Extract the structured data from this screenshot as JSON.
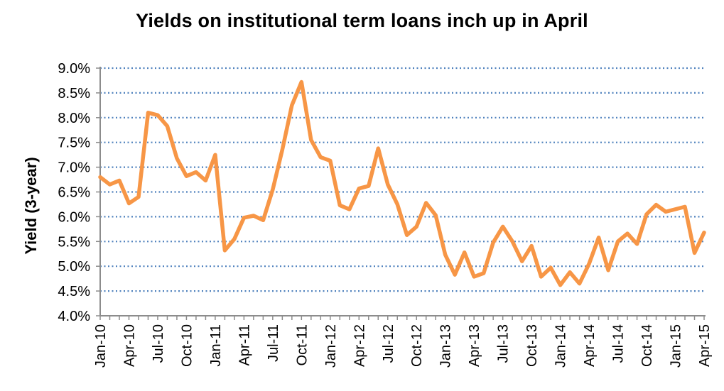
{
  "chart_data": {
    "type": "line",
    "title": "Yields on institutional term loans inch up in April",
    "xlabel": "",
    "ylabel": "Yield (3-year)",
    "ylim": [
      4.0,
      9.0
    ],
    "y_ticks": [
      4.0,
      4.5,
      5.0,
      5.5,
      6.0,
      6.5,
      7.0,
      7.5,
      8.0,
      8.5,
      9.0
    ],
    "y_tick_labels": [
      "4.0%",
      "4.5%",
      "5.0%",
      "5.5%",
      "6.0%",
      "6.5%",
      "7.0%",
      "7.5%",
      "8.0%",
      "8.5%",
      "9.0%"
    ],
    "x_tick_labels": [
      "Jan-10",
      "Apr-10",
      "Jul-10",
      "Oct-10",
      "Jan-11",
      "Apr-11",
      "Jul-11",
      "Oct-11",
      "Jan-12",
      "Apr-12",
      "Jul-12",
      "Oct-12",
      "Jan-13",
      "Apr-13",
      "Jul-13",
      "Oct-13",
      "Jan-14",
      "Apr-14",
      "Jul-14",
      "Oct-14",
      "Jan-15",
      "Apr-15"
    ],
    "grid": "horizontal dotted",
    "line_color": "#F79646",
    "grid_color": "#4F81BD",
    "series": [
      {
        "x": [
          "Jan-10",
          "Feb-10",
          "Mar-10",
          "Apr-10",
          "May-10",
          "Jun-10",
          "Jul-10",
          "Aug-10",
          "Sep-10",
          "Oct-10",
          "Nov-10",
          "Dec-10",
          "Jan-11",
          "Feb-11",
          "Mar-11",
          "Apr-11",
          "May-11",
          "Jun-11",
          "Jul-11",
          "Aug-11",
          "Sep-11",
          "Oct-11",
          "Nov-11",
          "Dec-11",
          "Jan-12",
          "Feb-12",
          "Mar-12",
          "Apr-12",
          "May-12",
          "Jun-12",
          "Jul-12",
          "Aug-12",
          "Sep-12",
          "Oct-12",
          "Nov-12",
          "Dec-12",
          "Jan-13",
          "Feb-13",
          "Mar-13",
          "Apr-13",
          "May-13",
          "Jun-13",
          "Jul-13",
          "Aug-13",
          "Sep-13",
          "Oct-13",
          "Nov-13",
          "Dec-13",
          "Jan-14",
          "Feb-14",
          "Mar-14",
          "Apr-14",
          "May-14",
          "Jun-14",
          "Jul-14",
          "Aug-14",
          "Sep-14",
          "Oct-14",
          "Nov-14",
          "Dec-14",
          "Jan-15",
          "Feb-15",
          "Mar-15",
          "Apr-15"
        ],
        "values": [
          6.8,
          6.65,
          6.73,
          6.27,
          6.4,
          8.1,
          8.05,
          7.83,
          7.18,
          6.82,
          6.9,
          6.73,
          7.25,
          5.32,
          5.55,
          5.98,
          6.02,
          5.93,
          6.55,
          7.35,
          8.25,
          8.72,
          7.55,
          7.2,
          7.13,
          6.23,
          6.15,
          6.57,
          6.62,
          7.38,
          6.65,
          6.25,
          5.63,
          5.8,
          6.28,
          6.03,
          5.23,
          4.83,
          5.28,
          4.79,
          4.86,
          5.48,
          5.8,
          5.5,
          5.1,
          5.41,
          4.79,
          4.97,
          4.62,
          4.88,
          4.65,
          5.05,
          5.58,
          4.92,
          5.5,
          5.66,
          5.45,
          6.05,
          6.24,
          6.1,
          6.15,
          6.2,
          5.27,
          5.68
        ]
      }
    ]
  }
}
